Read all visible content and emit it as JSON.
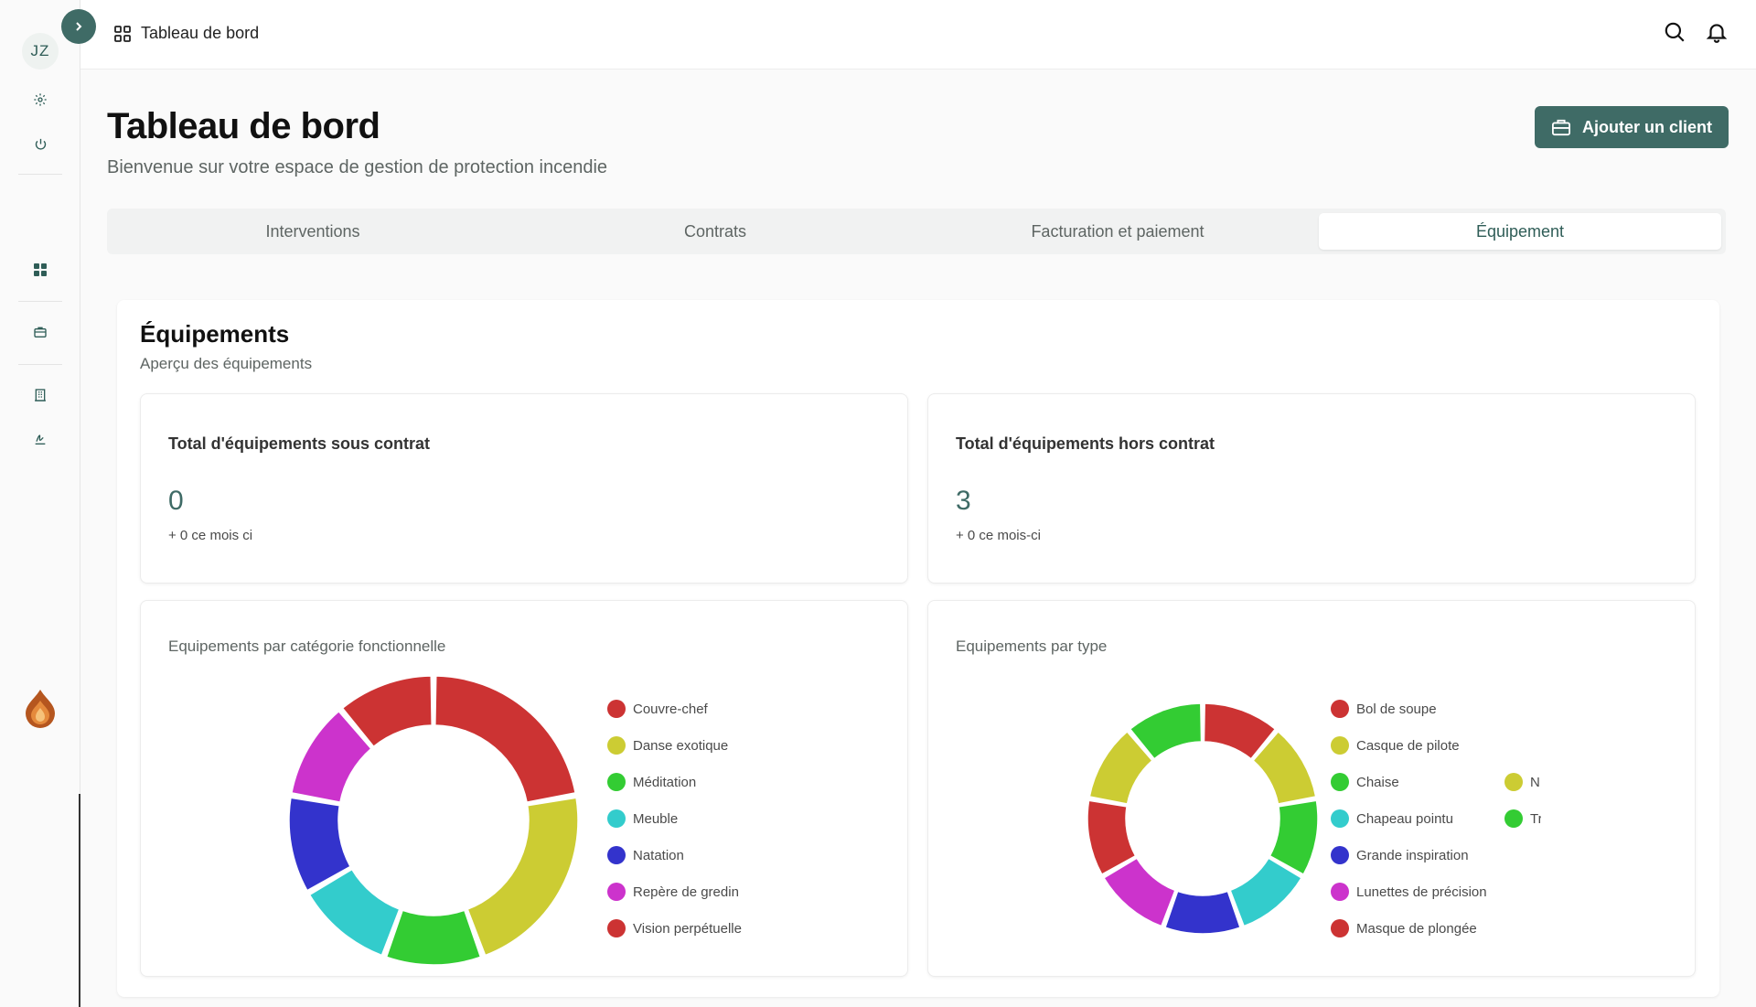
{
  "sidebar": {
    "avatar_initials": "JZ",
    "toggle_icon": "chevron-right-icon"
  },
  "topbar": {
    "breadcrumb": "Tableau de bord",
    "icons": [
      "search-icon",
      "bell-icon"
    ]
  },
  "header": {
    "title": "Tableau de bord",
    "subtitle": "Bienvenue sur votre espace de gestion de protection incendie",
    "add_client_label": "Ajouter un client"
  },
  "tabs": [
    {
      "label": "Interventions",
      "active": false
    },
    {
      "label": "Contrats",
      "active": false
    },
    {
      "label": "Facturation et paiement",
      "active": false
    },
    {
      "label": "Équipement",
      "active": true
    }
  ],
  "panel": {
    "title": "Équipements",
    "subtitle": "Aperçu des équipements"
  },
  "stats": [
    {
      "label": "Total d'équipements sous contrat",
      "value": "0",
      "delta": "+ 0 ce mois ci"
    },
    {
      "label": "Total d'équipements hors contrat",
      "value": "3",
      "delta": "+ 0 ce mois-ci"
    }
  ],
  "chart_data": [
    {
      "type": "pie",
      "title": "Equipements par catégorie fonctionnelle",
      "categories": [
        "Couvre-chef",
        "Danse exotique",
        "Méditation",
        "Meuble",
        "Natation",
        "Repère de gredin",
        "Vision perpétuelle"
      ],
      "values": [
        2,
        2,
        1,
        1,
        1,
        1,
        1
      ],
      "colors": [
        "#cc3333",
        "#cccc33",
        "#33cc33",
        "#33cccc",
        "#3333cc",
        "#cc33cc",
        "#cc3333"
      ]
    },
    {
      "type": "pie",
      "title": "Equipements par type",
      "categories": [
        "Bol de soupe",
        "Casque de pilote",
        "Chaise",
        "Chapeau pointu",
        "Grande inspiration",
        "Lunettes de précision",
        "Masque de plongée",
        "N",
        "Tr"
      ],
      "values": [
        1,
        1,
        1,
        1,
        1,
        1,
        1,
        1,
        1
      ],
      "colors": [
        "#cc3333",
        "#cccc33",
        "#33cc33",
        "#33cccc",
        "#3333cc",
        "#cc33cc",
        "#cc3333",
        "#cccc33",
        "#33cc33"
      ]
    }
  ]
}
